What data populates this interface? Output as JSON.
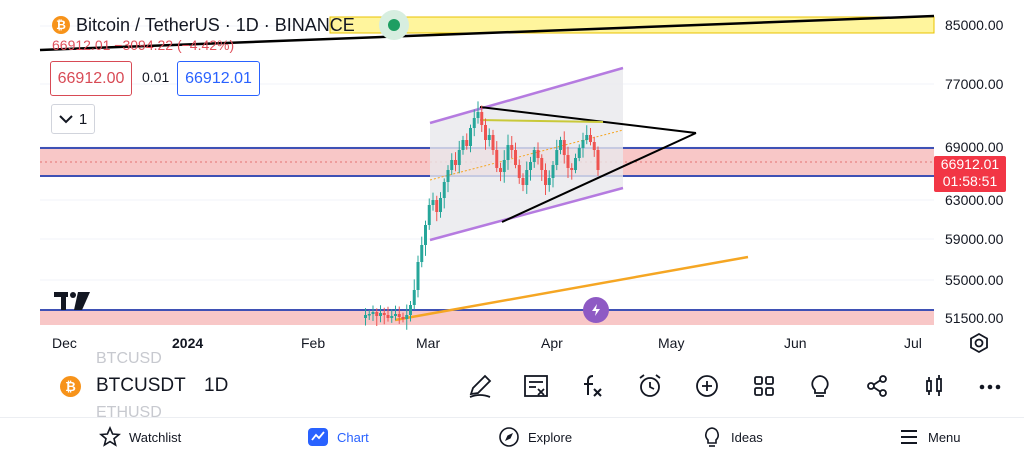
{
  "header": {
    "logo_glyph": "₿",
    "title": "Bitcoin / TetherUS · 1D · BINANCE",
    "change_line": "66912.01  −3094.22 (−4.42%)",
    "sell_price": "66912.00",
    "spread": "0.01",
    "buy_price": "66912.01",
    "collapse_count": "1"
  },
  "price_axis": {
    "labels": [
      "85000.00",
      "77000.00",
      "69000.00",
      "63000.00",
      "59000.00",
      "55000.00",
      "51500.00"
    ],
    "last_price": "66912.01",
    "countdown": "01:58:51"
  },
  "time_axis": {
    "labels": [
      "Dec",
      "2024",
      "Feb",
      "Mar",
      "Apr",
      "May",
      "Jun",
      "Jul"
    ]
  },
  "toolbar": {
    "ghost_above": "BTCUSD",
    "ghost_below": "ETHUSD",
    "symbol_logo": "₿",
    "symbol": "BTCUSDT",
    "timeframe": "1D",
    "tools": [
      "pencil-icon",
      "indicators-icon",
      "fx-icon",
      "alert-clock-icon",
      "add-icon",
      "layout-icon",
      "ideas-bulb-icon",
      "share-icon",
      "chart-style-icon",
      "more-icon"
    ]
  },
  "bottom_nav": {
    "watchlist": "Watchlist",
    "chart": "Chart",
    "explore": "Explore",
    "ideas": "Ideas",
    "menu": "Menu"
  },
  "colors": {
    "up": "#26a69a",
    "down": "#ef5350",
    "accent": "#2962ff",
    "zone_red": "#f7c5c5",
    "zone_yellow": "#fff59d",
    "orange_line": "#f5a623",
    "purple_channel": "#b57be0"
  }
}
